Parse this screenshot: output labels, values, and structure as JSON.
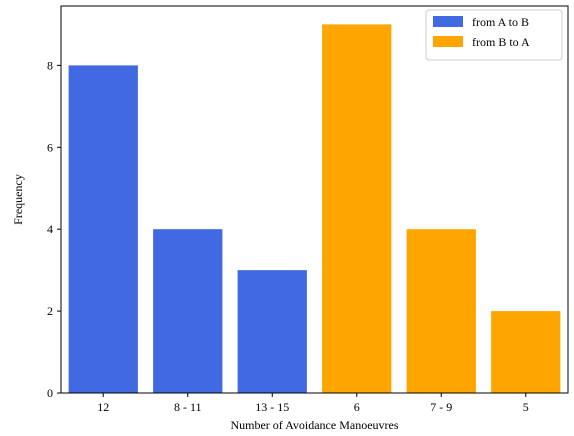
{
  "chart_data": {
    "type": "bar",
    "title": "",
    "xlabel": "Number of Avoidance Manoeuvres",
    "ylabel": "Frequency",
    "ylim": [
      0,
      9.45
    ],
    "yticks": [
      0,
      2,
      4,
      6,
      8
    ],
    "categories": [
      "12",
      "8 - 11",
      "13 - 15",
      "6",
      "7 - 9",
      "5"
    ],
    "series": [
      {
        "name": "from A to B",
        "color": "#4169e1",
        "values": [
          8,
          4,
          3,
          null,
          null,
          null
        ]
      },
      {
        "name": "from B to A",
        "color": "#ffa500",
        "values": [
          null,
          null,
          null,
          9,
          4,
          2
        ]
      }
    ],
    "grid": false,
    "legend_position": "top-right"
  }
}
